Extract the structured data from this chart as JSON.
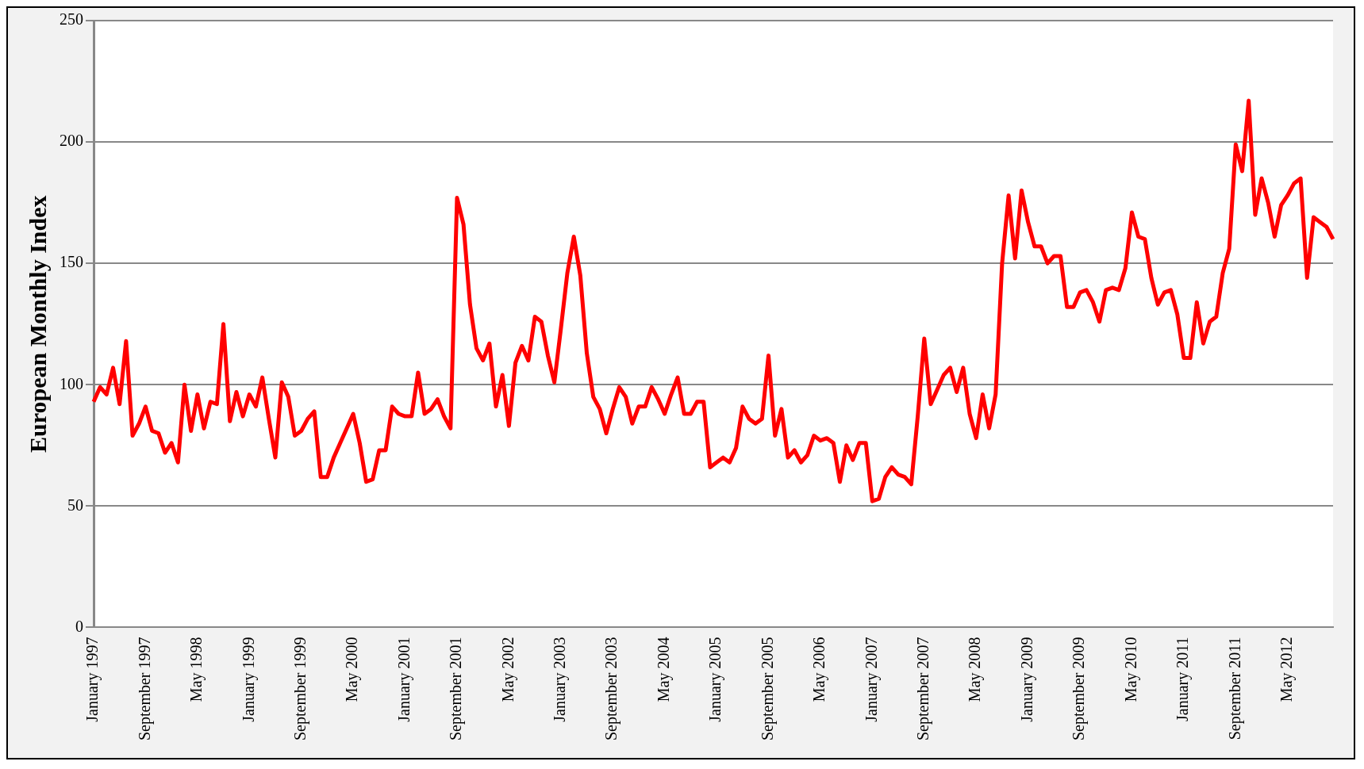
{
  "chart_data": {
    "type": "line",
    "ylabel": "European Monthly Index",
    "categories": [
      "January 1997",
      null,
      null,
      null,
      null,
      null,
      null,
      null,
      "September 1997",
      null,
      null,
      null,
      null,
      null,
      null,
      null,
      "May 1998",
      null,
      null,
      null,
      null,
      null,
      null,
      null,
      "January 1999",
      null,
      null,
      null,
      null,
      null,
      null,
      null,
      "September 1999",
      null,
      null,
      null,
      null,
      null,
      null,
      null,
      "May 2000",
      null,
      null,
      null,
      null,
      null,
      null,
      null,
      "January 2001",
      null,
      null,
      null,
      null,
      null,
      null,
      null,
      "September 2001",
      null,
      null,
      null,
      null,
      null,
      null,
      null,
      "May 2002",
      null,
      null,
      null,
      null,
      null,
      null,
      null,
      "January 2003",
      null,
      null,
      null,
      null,
      null,
      null,
      null,
      "September 2003",
      null,
      null,
      null,
      null,
      null,
      null,
      null,
      "May 2004",
      null,
      null,
      null,
      null,
      null,
      null,
      null,
      "January 2005",
      null,
      null,
      null,
      null,
      null,
      null,
      null,
      "September 2005",
      null,
      null,
      null,
      null,
      null,
      null,
      null,
      "May 2006",
      null,
      null,
      null,
      null,
      null,
      null,
      null,
      "January 2007",
      null,
      null,
      null,
      null,
      null,
      null,
      null,
      "September 2007",
      null,
      null,
      null,
      null,
      null,
      null,
      null,
      "May 2008",
      null,
      null,
      null,
      null,
      null,
      null,
      null,
      "January 2009",
      null,
      null,
      null,
      null,
      null,
      null,
      null,
      "September 2009",
      null,
      null,
      null,
      null,
      null,
      null,
      null,
      "May 2010",
      null,
      null,
      null,
      null,
      null,
      null,
      null,
      "January 2011",
      null,
      null,
      null,
      null,
      null,
      null,
      null,
      "September 2011",
      null,
      null,
      null,
      null,
      null,
      null,
      null,
      "May 2012",
      null,
      null,
      null,
      null,
      null,
      null,
      null
    ],
    "series": [
      {
        "color": "#ff0000",
        "values": [
          93,
          99,
          96,
          107,
          92,
          118,
          79,
          84,
          91,
          81,
          80,
          72,
          76,
          68,
          100,
          81,
          96,
          82,
          93,
          92,
          125,
          85,
          97,
          87,
          96,
          91,
          103,
          86,
          70,
          101,
          95,
          79,
          81,
          86,
          89,
          62,
          62,
          70,
          76,
          82,
          88,
          76,
          60,
          61,
          73,
          73,
          91,
          88,
          87,
          87,
          105,
          88,
          90,
          94,
          87,
          82,
          177,
          166,
          133,
          115,
          110,
          117,
          91,
          104,
          83,
          109,
          116,
          110,
          128,
          126,
          112,
          101,
          123,
          146,
          161,
          145,
          113,
          95,
          90,
          80,
          90,
          99,
          95,
          84,
          91,
          91,
          99,
          94,
          88,
          96,
          103,
          88,
          88,
          93,
          93,
          66,
          68,
          70,
          68,
          74,
          91,
          86,
          84,
          86,
          112,
          79,
          90,
          70,
          73,
          68,
          71,
          79,
          77,
          78,
          76,
          60,
          75,
          69,
          76,
          76,
          52,
          53,
          62,
          66,
          63,
          62,
          59,
          87,
          119,
          92,
          98,
          104,
          107,
          97,
          107,
          88,
          78,
          96,
          82,
          96,
          150,
          178,
          152,
          180,
          167,
          157,
          157,
          150,
          153,
          153,
          132,
          132,
          138,
          139,
          134,
          126,
          139,
          140,
          139,
          148,
          171,
          161,
          160,
          144,
          133,
          138,
          139,
          129,
          111,
          111,
          134,
          117,
          126,
          128,
          146,
          156,
          199,
          188,
          217,
          170,
          185,
          175,
          161,
          174,
          178,
          183,
          185,
          144,
          169,
          167,
          165,
          160
        ]
      }
    ],
    "ylim": [
      0,
      250
    ],
    "yticks": [
      0,
      50,
      100,
      150,
      200,
      250
    ],
    "grid": "y",
    "legend": false,
    "marker": "none",
    "line_style": "solid"
  }
}
